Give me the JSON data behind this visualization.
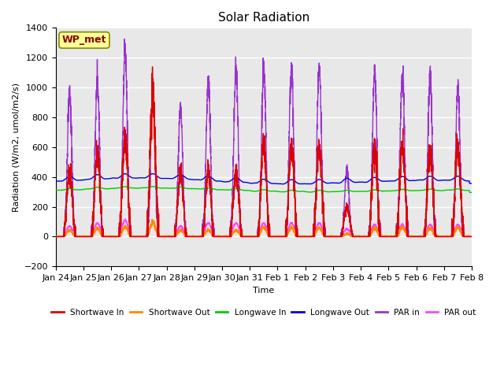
{
  "title": "Solar Radiation",
  "ylabel": "Radiation (W/m2, umol/m2/s)",
  "xlabel": "Time",
  "annotation": "WP_met",
  "annotation_color": "#880000",
  "annotation_bg": "#ffff99",
  "ylim": [
    -200,
    1400
  ],
  "yticks": [
    -200,
    0,
    200,
    400,
    600,
    800,
    1000,
    1200,
    1400
  ],
  "x_tick_labels": [
    "Jan 24",
    "Jan 25",
    "Jan 26",
    "Jan 27",
    "Jan 28",
    "Jan 29",
    "Jan 30",
    "Jan 31",
    "Feb 1",
    "Feb 2",
    "Feb 3",
    "Feb 4",
    "Feb 5",
    "Feb 6",
    "Feb 7",
    "Feb 8"
  ],
  "series": {
    "shortwave_in": {
      "color": "#dd0000",
      "label": "Shortwave In",
      "lw": 1.0
    },
    "shortwave_out": {
      "color": "#ff8800",
      "label": "Shortwave Out",
      "lw": 1.0
    },
    "longwave_in": {
      "color": "#00cc00",
      "label": "Longwave In",
      "lw": 1.0
    },
    "longwave_out": {
      "color": "#0000dd",
      "label": "Longwave Out",
      "lw": 1.0
    },
    "par_in": {
      "color": "#9933cc",
      "label": "PAR in",
      "lw": 1.0
    },
    "par_out": {
      "color": "#ff44ff",
      "label": "PAR out",
      "lw": 1.0
    }
  },
  "background_color": "#e8e8e8",
  "grid_color": "#ffffff",
  "n_days": 15,
  "points_per_day": 288,
  "sw_peaks": [
    450,
    550,
    670,
    950,
    430,
    430,
    430,
    600,
    600,
    600,
    200,
    600,
    600,
    550,
    600
  ],
  "par_peaks": [
    960,
    1040,
    1250,
    970,
    870,
    1040,
    1120,
    1130,
    1130,
    1130,
    460,
    1100,
    1090,
    1080,
    990
  ],
  "par_out_peaks": [
    70,
    90,
    110,
    90,
    70,
    90,
    90,
    90,
    90,
    90,
    50,
    80,
    80,
    80,
    80
  ],
  "lw_base": 310,
  "lw_out_base": 370
}
